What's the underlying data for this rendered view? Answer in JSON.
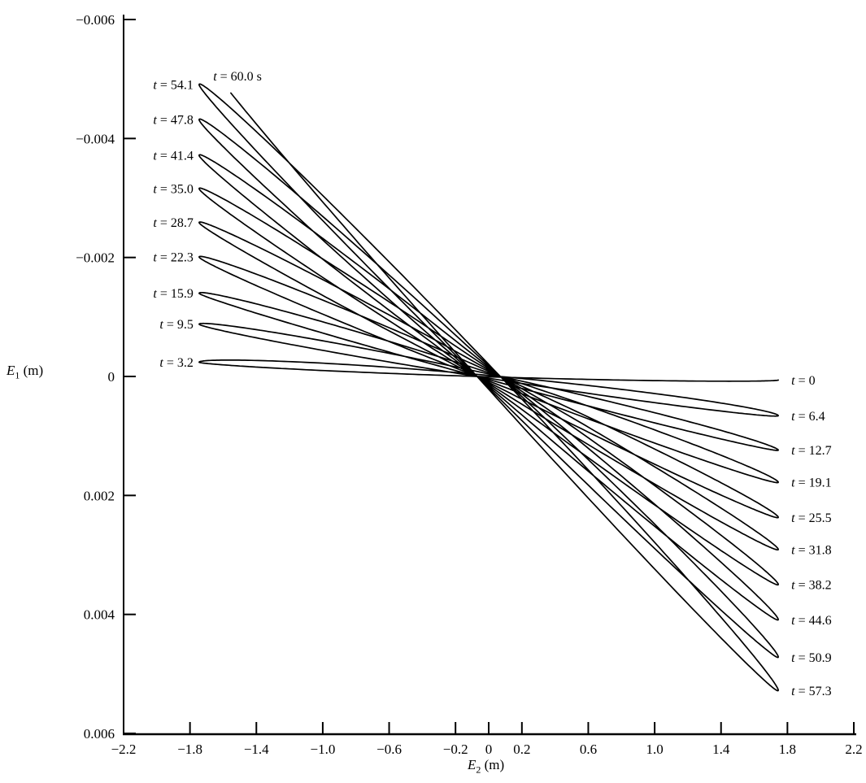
{
  "figure": {
    "background": "#ffffff",
    "ink": "#000000"
  },
  "chart_data": {
    "type": "line",
    "title": "",
    "xlabel": {
      "letter": "E",
      "sub": "2",
      "rest": " (m)"
    },
    "ylabel": {
      "letter": "E",
      "sub": "1",
      "rest": " (m)"
    },
    "xlim": [
      -2.2,
      2.2
    ],
    "ylim_top_to_bottom": [
      -0.006,
      0.006
    ],
    "grid": false,
    "legend": "none",
    "x_ticks": {
      "values": [
        -2.2,
        -1.8,
        -1.4,
        -1.0,
        -0.6,
        -0.2,
        0,
        0.2,
        0.6,
        1.0,
        1.4,
        1.8,
        2.2
      ],
      "labels": [
        "−2.2",
        "−1.8",
        "−1.4",
        "−1.0",
        "−0.6",
        "−0.2",
        "0",
        "0.2",
        "0.6",
        "1.0",
        "1.4",
        "1.8",
        "2.2"
      ]
    },
    "y_ticks": {
      "values": [
        -0.006,
        -0.004,
        -0.002,
        0,
        0.002,
        0.004,
        0.006
      ],
      "labels": [
        "−0.006",
        "−0.004",
        "−0.002",
        "0",
        "0.002",
        "0.004",
        "0.006"
      ]
    },
    "trajectory_model": {
      "description": "Precessing thin-ellipse trajectory: E2(t)=A*cos(w*t); E1(t)=b(t)*cos(w*t-delta) with b(t) interpolated through measured loop-tip amplitudes at each half period.",
      "E2_amplitude_m": 1.745,
      "omega_rad_per_s": 0.98696,
      "half_period_s": 3.1831,
      "phase_lag_rad": 0.04,
      "t_start_s": 0,
      "t_end_s": 60.0,
      "end_amplitude_m": 0.0055
    },
    "loop_tips": [
      {
        "label": "t = 0",
        "t_s": 0,
        "side": "right",
        "E2_m": 1.745,
        "E1_m": 6e-05
      },
      {
        "label": "t = 3.2",
        "t_s": 3.2,
        "side": "left",
        "E2_m": -1.745,
        "E1_m": -0.00024
      },
      {
        "label": "t = 6.4",
        "t_s": 6.4,
        "side": "right",
        "E2_m": 1.745,
        "E1_m": 0.00066
      },
      {
        "label": "t = 9.5",
        "t_s": 9.5,
        "side": "left",
        "E2_m": -1.745,
        "E1_m": -0.00088
      },
      {
        "label": "t = 12.7",
        "t_s": 12.7,
        "side": "right",
        "E2_m": 1.745,
        "E1_m": 0.00124
      },
      {
        "label": "t = 15.9",
        "t_s": 15.9,
        "side": "left",
        "E2_m": -1.745,
        "E1_m": -0.0014
      },
      {
        "label": "t = 19.1",
        "t_s": 19.1,
        "side": "right",
        "E2_m": 1.745,
        "E1_m": 0.00178
      },
      {
        "label": "t = 22.3",
        "t_s": 22.3,
        "side": "left",
        "E2_m": -1.745,
        "E1_m": -0.00201
      },
      {
        "label": "t = 25.5",
        "t_s": 25.5,
        "side": "right",
        "E2_m": 1.745,
        "E1_m": 0.00237
      },
      {
        "label": "t = 28.7",
        "t_s": 28.7,
        "side": "left",
        "E2_m": -1.745,
        "E1_m": -0.00259
      },
      {
        "label": "t = 31.8",
        "t_s": 31.8,
        "side": "right",
        "E2_m": 1.745,
        "E1_m": 0.00291
      },
      {
        "label": "t = 35.0",
        "t_s": 35.0,
        "side": "left",
        "E2_m": -1.745,
        "E1_m": -0.00316
      },
      {
        "label": "t = 38.2",
        "t_s": 38.2,
        "side": "right",
        "E2_m": 1.745,
        "E1_m": 0.0035
      },
      {
        "label": "t = 41.4",
        "t_s": 41.4,
        "side": "left",
        "E2_m": -1.745,
        "E1_m": -0.00372
      },
      {
        "label": "t = 44.6",
        "t_s": 44.6,
        "side": "right",
        "E2_m": 1.745,
        "E1_m": 0.00409
      },
      {
        "label": "t = 47.8",
        "t_s": 47.8,
        "side": "left",
        "E2_m": -1.745,
        "E1_m": -0.00432
      },
      {
        "label": "t = 50.9",
        "t_s": 50.9,
        "side": "right",
        "E2_m": 1.745,
        "E1_m": 0.00472
      },
      {
        "label": "t = 54.1",
        "t_s": 54.1,
        "side": "left",
        "E2_m": -1.745,
        "E1_m": -0.00491
      },
      {
        "label": "t = 57.3",
        "t_s": 57.3,
        "side": "right",
        "E2_m": 1.745,
        "E1_m": 0.00528
      }
    ],
    "end_label": {
      "label": "t = 60.0 s",
      "t_s": 60.0,
      "E2_m": -1.66,
      "E1_m": -0.00505
    }
  }
}
